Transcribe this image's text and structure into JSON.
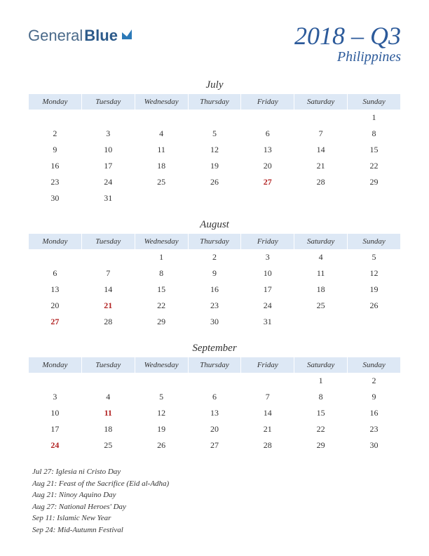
{
  "logo": {
    "part1": "General",
    "part2": "Blue"
  },
  "title": "2018 – Q3",
  "subtitle": "Philippines",
  "weekdays": [
    "Monday",
    "Tuesday",
    "Wednesday",
    "Thursday",
    "Friday",
    "Saturday",
    "Sunday"
  ],
  "colors": {
    "header_bg": "#dde8f5",
    "title_color": "#2c5a9a",
    "holiday_color": "#b22222",
    "text_color": "#333333",
    "background": "#ffffff"
  },
  "fonts": {
    "body": "Georgia, serif",
    "title_size": 36,
    "subtitle_size": 20,
    "month_size": 15,
    "weekday_size": 11,
    "day_size": 12,
    "holiday_size": 11
  },
  "months": [
    {
      "name": "July",
      "weeks": [
        [
          "",
          "",
          "",
          "",
          "",
          "",
          "1"
        ],
        [
          "2",
          "3",
          "4",
          "5",
          "6",
          "7",
          "8"
        ],
        [
          "9",
          "10",
          "11",
          "12",
          "13",
          "14",
          "15"
        ],
        [
          "16",
          "17",
          "18",
          "19",
          "20",
          "21",
          "22"
        ],
        [
          "23",
          "24",
          "25",
          "26",
          "27",
          "28",
          "29"
        ],
        [
          "30",
          "31",
          "",
          "",
          "",
          "",
          ""
        ]
      ],
      "holidays": [
        "27"
      ]
    },
    {
      "name": "August",
      "weeks": [
        [
          "",
          "",
          "1",
          "2",
          "3",
          "4",
          "5"
        ],
        [
          "6",
          "7",
          "8",
          "9",
          "10",
          "11",
          "12"
        ],
        [
          "13",
          "14",
          "15",
          "16",
          "17",
          "18",
          "19"
        ],
        [
          "20",
          "21",
          "22",
          "23",
          "24",
          "25",
          "26"
        ],
        [
          "27",
          "28",
          "29",
          "30",
          "31",
          "",
          ""
        ]
      ],
      "holidays": [
        "21",
        "27"
      ]
    },
    {
      "name": "September",
      "weeks": [
        [
          "",
          "",
          "",
          "",
          "",
          "1",
          "2"
        ],
        [
          "3",
          "4",
          "5",
          "6",
          "7",
          "8",
          "9"
        ],
        [
          "10",
          "11",
          "12",
          "13",
          "14",
          "15",
          "16"
        ],
        [
          "17",
          "18",
          "19",
          "20",
          "21",
          "22",
          "23"
        ],
        [
          "24",
          "25",
          "26",
          "27",
          "28",
          "29",
          "30"
        ]
      ],
      "holidays": [
        "11",
        "24"
      ]
    }
  ],
  "holiday_list": [
    "Jul 27: Iglesia ni Cristo Day",
    "Aug 21: Feast of the Sacrifice (Eid al-Adha)",
    "Aug 21: Ninoy Aquino Day",
    "Aug 27: National Heroes' Day",
    "Sep 11: Islamic New Year",
    "Sep 24: Mid-Autumn Festival"
  ]
}
